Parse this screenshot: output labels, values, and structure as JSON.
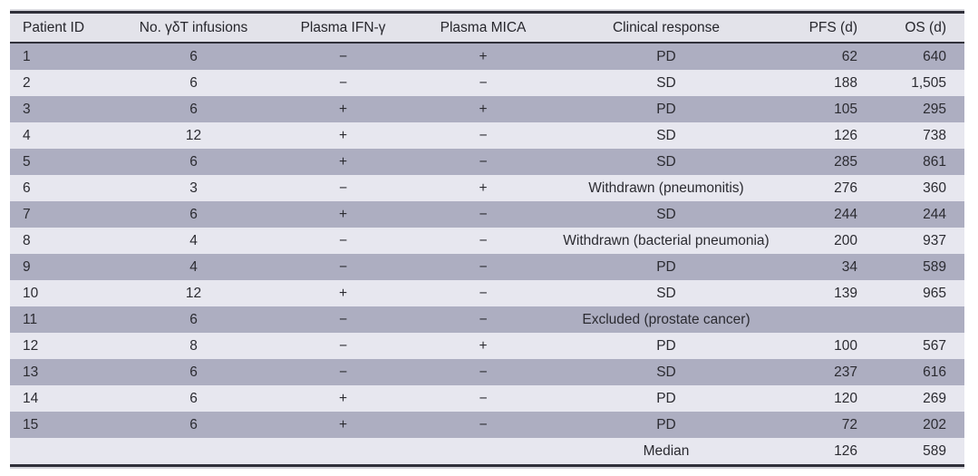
{
  "table": {
    "columns": [
      {
        "label": "Patient ID",
        "align": "left"
      },
      {
        "label": "No. γδT infusions",
        "align": "center"
      },
      {
        "label": "Plasma IFN-γ",
        "align": "center"
      },
      {
        "label": "Plasma MICA",
        "align": "center"
      },
      {
        "label": "Clinical response",
        "align": "center"
      },
      {
        "label": "PFS (d)",
        "align": "right"
      },
      {
        "label": "OS (d)",
        "align": "right"
      }
    ],
    "rows": [
      [
        "1",
        "6",
        "−",
        "+",
        "PD",
        "62",
        "640"
      ],
      [
        "2",
        "6",
        "−",
        "−",
        "SD",
        "188",
        "1,505"
      ],
      [
        "3",
        "6",
        "+",
        "+",
        "PD",
        "105",
        "295"
      ],
      [
        "4",
        "12",
        "+",
        "−",
        "SD",
        "126",
        "738"
      ],
      [
        "5",
        "6",
        "+",
        "−",
        "SD",
        "285",
        "861"
      ],
      [
        "6",
        "3",
        "−",
        "+",
        "Withdrawn (pneumonitis)",
        "276",
        "360"
      ],
      [
        "7",
        "6",
        "+",
        "−",
        "SD",
        "244",
        "244"
      ],
      [
        "8",
        "4",
        "−",
        "−",
        "Withdrawn (bacterial pneumonia)",
        "200",
        "937"
      ],
      [
        "9",
        "4",
        "−",
        "−",
        "PD",
        "34",
        "589"
      ],
      [
        "10",
        "12",
        "+",
        "−",
        "SD",
        "139",
        "965"
      ],
      [
        "11",
        "6",
        "−",
        "−",
        "Excluded (prostate cancer)",
        "",
        ""
      ],
      [
        "12",
        "8",
        "−",
        "+",
        "PD",
        "100",
        "567"
      ],
      [
        "13",
        "6",
        "−",
        "−",
        "SD",
        "237",
        "616"
      ],
      [
        "14",
        "6",
        "+",
        "−",
        "PD",
        "120",
        "269"
      ],
      [
        "15",
        "6",
        "+",
        "−",
        "PD",
        "72",
        "202"
      ],
      [
        "",
        "",
        "",
        "",
        "Median",
        "126",
        "589"
      ]
    ],
    "colors": {
      "row_dark": "#adaec1",
      "row_light": "#e7e7ef",
      "header_bg": "#e3e3ea",
      "border": "#30303a",
      "text": "#2b2b31"
    }
  }
}
